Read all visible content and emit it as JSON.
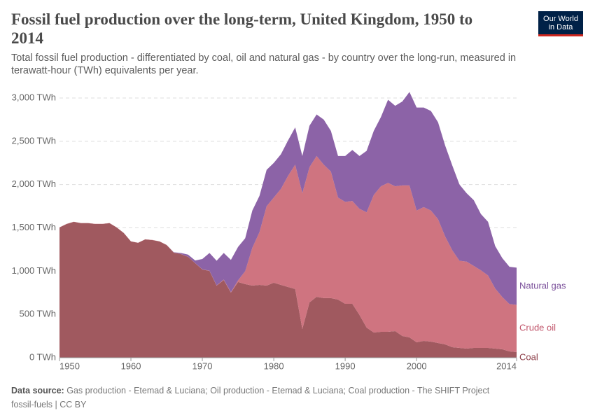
{
  "chart_data": {
    "type": "stacked-area",
    "title": "Fossil fuel production over the long-term, United Kingdom, 1950 to 2014",
    "subtitle": "Total fossil fuel production - differentiated by coal, oil and natural gas - by country over the long-run, measured in terawatt-hour (TWh) equivalents per year.",
    "logo": [
      "Our World",
      "in Data"
    ],
    "source_label": "Data source:",
    "source": "Gas production - Etemad & Luciana; Oil production - Etemad & Luciana; Coal production - The SHIFT Project",
    "footer": "fossil-fuels | CC BY",
    "x": [
      1950,
      1951,
      1952,
      1953,
      1954,
      1955,
      1956,
      1957,
      1958,
      1959,
      1960,
      1961,
      1962,
      1963,
      1964,
      1965,
      1966,
      1967,
      1968,
      1969,
      1970,
      1971,
      1972,
      1973,
      1974,
      1975,
      1976,
      1977,
      1978,
      1979,
      1980,
      1981,
      1982,
      1983,
      1984,
      1985,
      1986,
      1987,
      1988,
      1989,
      1990,
      1991,
      1992,
      1993,
      1994,
      1995,
      1996,
      1997,
      1998,
      1999,
      2000,
      2001,
      2002,
      2003,
      2004,
      2005,
      2006,
      2007,
      2008,
      2009,
      2010,
      2011,
      2012,
      2013,
      2014
    ],
    "xlim": [
      1950,
      2014
    ],
    "xticks": [
      1950,
      1960,
      1970,
      1980,
      1990,
      2000,
      2014
    ],
    "ylim": [
      0,
      3000
    ],
    "yticks": [
      {
        "value": 0,
        "label": "0 TWh"
      },
      {
        "value": 500,
        "label": "500 TWh"
      },
      {
        "value": 1000,
        "label": "1,000 TWh"
      },
      {
        "value": 1500,
        "label": "1,500 TWh"
      },
      {
        "value": 2000,
        "label": "2,000 TWh"
      },
      {
        "value": 2500,
        "label": "2,500 TWh"
      },
      {
        "value": 3000,
        "label": "3,000 TWh"
      }
    ],
    "grid": true,
    "series": [
      {
        "name": "Coal",
        "color": "#a0595f",
        "label_color": "#8c3e48",
        "values": [
          1505,
          1545,
          1570,
          1555,
          1555,
          1545,
          1545,
          1555,
          1505,
          1440,
          1343,
          1327,
          1367,
          1359,
          1343,
          1302,
          1214,
          1197,
          1165,
          1092,
          1019,
          1003,
          833,
          898,
          752,
          874,
          850,
          833,
          841,
          833,
          866,
          841,
          817,
          793,
          332,
          639,
          704,
          688,
          688,
          671,
          623,
          623,
          494,
          348,
          291,
          299,
          299,
          307,
          251,
          235,
          178,
          194,
          186,
          170,
          154,
          121,
          113,
          105,
          113,
          113,
          113,
          105,
          97,
          73,
          65
        ]
      },
      {
        "name": "Crude oil",
        "color": "#cf7480",
        "label_color": "#c0546a",
        "values": [
          1,
          1,
          1,
          1,
          1,
          1,
          1,
          1,
          1,
          1,
          1,
          1,
          1,
          1,
          1,
          1,
          1,
          1,
          1,
          1,
          2,
          2,
          3,
          5,
          5,
          20,
          150,
          437,
          609,
          917,
          984,
          1109,
          1283,
          1437,
          1568,
          1561,
          1626,
          1542,
          1462,
          1179,
          1177,
          1187,
          1226,
          1332,
          1589,
          1681,
          1721,
          1673,
          1739,
          1755,
          1522,
          1546,
          1514,
          1430,
          1246,
          1119,
          1007,
          1005,
          947,
          897,
          837,
          695,
          603,
          547,
          545
        ]
      },
      {
        "name": "Natural gas",
        "color": "#8c63a7",
        "label_color": "#7a4f9a",
        "values": [
          0,
          0,
          0,
          0,
          0,
          0,
          0,
          0,
          0,
          0,
          0,
          0,
          0,
          0,
          0,
          0,
          3,
          12,
          25,
          30,
          119,
          205,
          284,
          307,
          373,
          386,
          380,
          430,
          420,
          420,
          400,
          400,
          410,
          430,
          430,
          480,
          480,
          520,
          470,
          480,
          530,
          590,
          610,
          710,
          740,
          800,
          960,
          930,
          970,
          1080,
          1190,
          1150,
          1150,
          1120,
          1050,
          980,
          880,
          790,
          760,
          650,
          620,
          490,
          450,
          430,
          430
        ]
      }
    ]
  }
}
